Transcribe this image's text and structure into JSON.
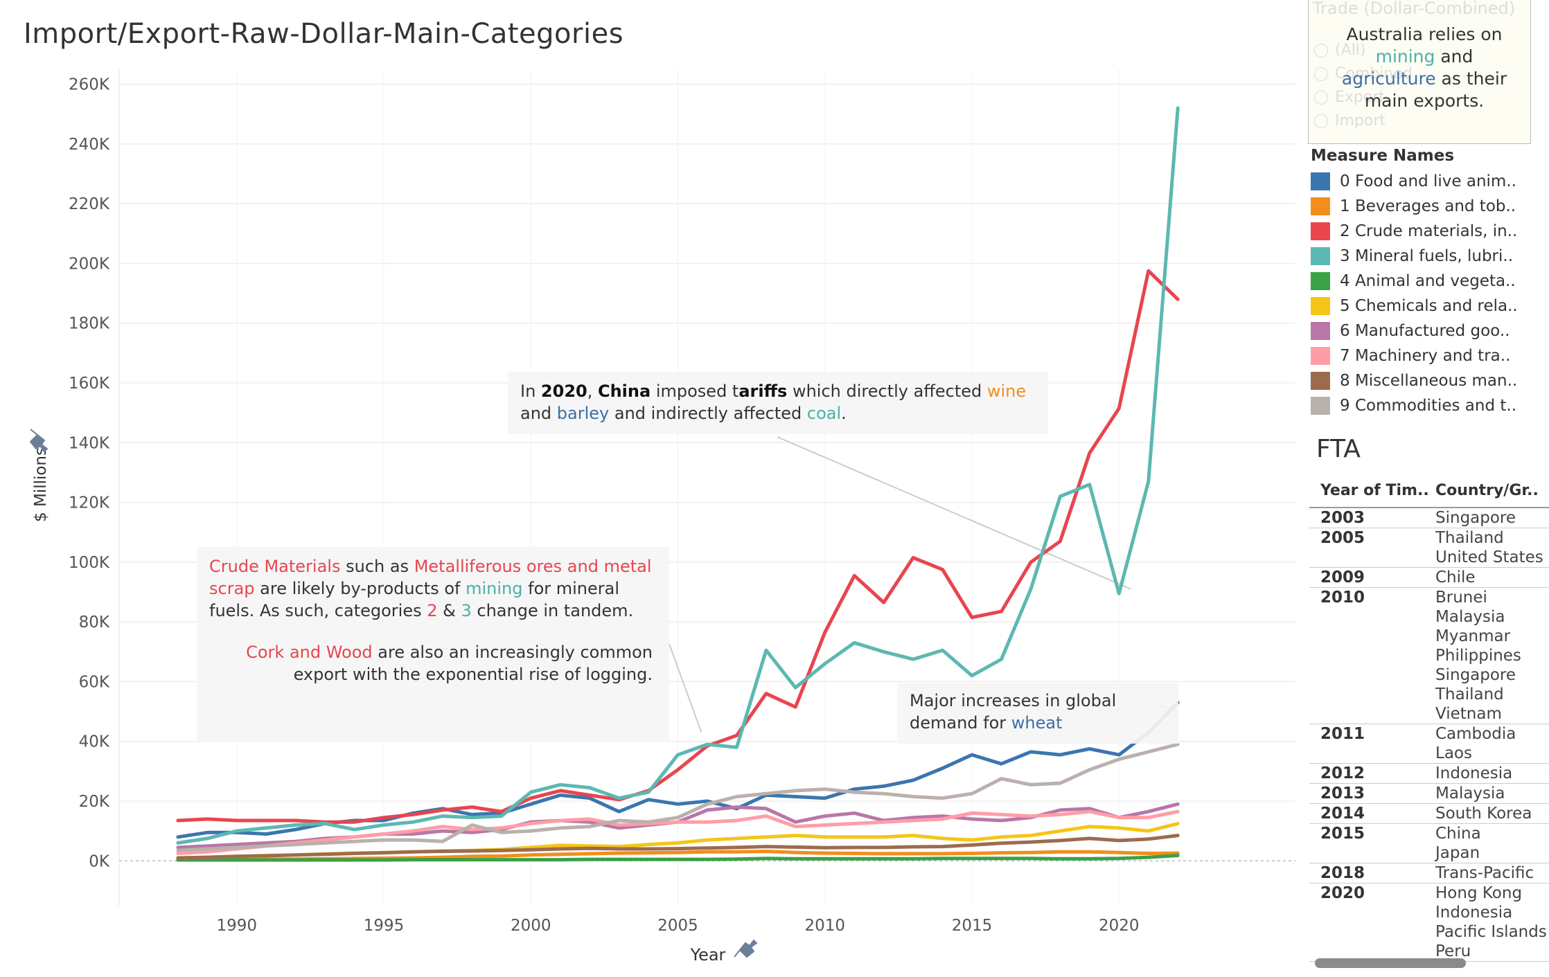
{
  "title": "Import/Export-Raw-Dollar-Main-Categories",
  "filter": {
    "title": "Trade (Dollar-Combined)",
    "options": [
      "(All)",
      "Combined",
      "Export",
      "Import"
    ]
  },
  "tooltip_box": {
    "line1": "Australia  relies on",
    "word_mining": "mining",
    "and": " and",
    "word_agriculture": "agriculture",
    "rest": " as their main exports."
  },
  "annotations": {
    "china": {
      "p1": "In ",
      "year": "2020",
      "p2": ", ",
      "country": "China",
      "p3": " imposed t",
      "bold_word": "ariffs",
      "p4": " which directly affected ",
      "wine": "wine",
      "p5": " and ",
      "barley": "barley",
      "p6": " and indirectly affected ",
      "coal": "coal",
      "p7": "."
    },
    "crude": {
      "a": "Crude Materials",
      "b": " such as ",
      "c": "Metalliferous ores and metal scrap",
      "d": " are likely by-products of ",
      "e": "mining",
      "f": " for mineral fuels. As such, categories ",
      "g": "2",
      "h": " & ",
      "i": "3",
      "j": " change in tandem.",
      "k": "Cork and Wood",
      "l": " are also an increasingly common export with the exponential rise of logging."
    },
    "wheat": {
      "a": "Major increases in global demand for ",
      "b": "wheat"
    }
  },
  "legend": {
    "title": "Measure Names",
    "items": [
      {
        "label": "0 Food and live anim..",
        "color": "#3b75af"
      },
      {
        "label": "1 Beverages and tob..",
        "color": "#f28e1c"
      },
      {
        "label": "2 Crude materials, in..",
        "color": "#e8454f"
      },
      {
        "label": "3 Mineral fuels, lubri..",
        "color": "#5cb8b2"
      },
      {
        "label": "4 Animal and vegeta..",
        "color": "#3aa146"
      },
      {
        "label": "5 Chemicals and rela..",
        "color": "#f5c518"
      },
      {
        "label": "6 Manufactured goo..",
        "color": "#b877a8"
      },
      {
        "label": "7 Machinery and tra..",
        "color": "#ff9da7"
      },
      {
        "label": "8 Miscellaneous man..",
        "color": "#9c6b4e"
      },
      {
        "label": "9 Commodities and t..",
        "color": "#bab0ac"
      }
    ]
  },
  "fta": {
    "title": "FTA",
    "headers": [
      "Year of Tim..",
      "Country/Gr.."
    ],
    "rows": [
      {
        "year": "2003",
        "countries": [
          "Singapore"
        ]
      },
      {
        "year": "2005",
        "countries": [
          "Thailand",
          "United States"
        ]
      },
      {
        "year": "2009",
        "countries": [
          "Chile"
        ]
      },
      {
        "year": "2010",
        "countries": [
          "Brunei",
          "Malaysia",
          "Myanmar",
          "Philippines",
          "Singapore",
          "Thailand",
          "Vietnam"
        ]
      },
      {
        "year": "2011",
        "countries": [
          "Cambodia",
          "Laos"
        ]
      },
      {
        "year": "2012",
        "countries": [
          "Indonesia"
        ]
      },
      {
        "year": "2013",
        "countries": [
          "Malaysia"
        ]
      },
      {
        "year": "2014",
        "countries": [
          "South Korea"
        ]
      },
      {
        "year": "2015",
        "countries": [
          "China",
          "Japan"
        ]
      },
      {
        "year": "2018",
        "countries": [
          "Trans-Pacific"
        ]
      },
      {
        "year": "2020",
        "countries": [
          "Hong Kong",
          "Indonesia",
          "Pacific Islands",
          "Peru"
        ]
      }
    ]
  },
  "chart_data": {
    "type": "line",
    "title": "Import/Export-Raw-Dollar-Main-Categories",
    "xlabel": "Year",
    "ylabel": "$ Millions",
    "xlim": [
      1986,
      2026
    ],
    "ylim": [
      -15000,
      265000
    ],
    "x_ticks": [
      1990,
      1995,
      2000,
      2005,
      2010,
      2015,
      2020
    ],
    "y_ticks": [
      0,
      20000,
      40000,
      60000,
      80000,
      100000,
      120000,
      140000,
      160000,
      180000,
      200000,
      220000,
      240000,
      260000
    ],
    "y_tick_labels": [
      "0K",
      "20K",
      "40K",
      "60K",
      "80K",
      "100K",
      "120K",
      "140K",
      "160K",
      "180K",
      "200K",
      "220K",
      "240K",
      "260K"
    ],
    "grid": true,
    "legend": "right",
    "x": [
      1988,
      1989,
      1990,
      1991,
      1992,
      1993,
      1994,
      1995,
      1996,
      1997,
      1998,
      1999,
      2000,
      2001,
      2002,
      2003,
      2004,
      2005,
      2006,
      2007,
      2008,
      2009,
      2010,
      2011,
      2012,
      2013,
      2014,
      2015,
      2016,
      2017,
      2018,
      2019,
      2020,
      2021,
      2022
    ],
    "series": [
      {
        "name": "0 Food and live anim..",
        "color": "#3b75af",
        "values": [
          8000,
          9500,
          9500,
          9000,
          10500,
          12500,
          13500,
          13500,
          16000,
          17500,
          15500,
          16000,
          19000,
          22000,
          21000,
          16500,
          20500,
          19000,
          20000,
          17500,
          22000,
          21500,
          21000,
          24000,
          25000,
          27000,
          31000,
          35500,
          32500,
          36500,
          35500,
          37500,
          35500,
          43000,
          53000
        ]
      },
      {
        "name": "1 Beverages and tob..",
        "color": "#f28e1c",
        "values": [
          300,
          300,
          400,
          500,
          600,
          700,
          800,
          900,
          1000,
          1200,
          1500,
          1600,
          2000,
          2200,
          2400,
          2600,
          2700,
          2800,
          3000,
          3000,
          3200,
          2800,
          2600,
          2500,
          2400,
          2400,
          2400,
          2500,
          2700,
          2800,
          3000,
          3000,
          2800,
          2500,
          2600
        ]
      },
      {
        "name": "2 Crude materials, in..",
        "color": "#e8454f",
        "values": [
          13500,
          14000,
          13500,
          13500,
          13500,
          13000,
          13000,
          14500,
          15500,
          17000,
          18000,
          16500,
          21000,
          23500,
          22000,
          20500,
          23500,
          30500,
          38500,
          42000,
          56000,
          51500,
          76500,
          95500,
          86500,
          101500,
          97500,
          81500,
          83500,
          100000,
          107000,
          136500,
          151500,
          197500,
          188000
        ]
      },
      {
        "name": "3 Mineral fuels, lubri..",
        "color": "#5cb8b2",
        "values": [
          6000,
          7500,
          10000,
          11000,
          12000,
          12500,
          10500,
          12000,
          13000,
          15000,
          14500,
          15000,
          23000,
          25500,
          24500,
          21000,
          23000,
          35500,
          39000,
          38000,
          70500,
          58000,
          66000,
          73000,
          70000,
          67500,
          70500,
          62000,
          67500,
          91000,
          122000,
          126000,
          89500,
          127000,
          252000
        ]
      },
      {
        "name": "4 Animal and vegeta..",
        "color": "#3aa146",
        "values": [
          300,
          300,
          300,
          300,
          300,
          300,
          300,
          300,
          400,
          400,
          400,
          400,
          400,
          400,
          500,
          500,
          500,
          500,
          500,
          600,
          800,
          700,
          700,
          700,
          700,
          700,
          800,
          800,
          800,
          800,
          700,
          700,
          800,
          1200,
          1800
        ]
      },
      {
        "name": "5 Chemicals and rela..",
        "color": "#f5c518",
        "values": [
          1000,
          1200,
          1500,
          1800,
          2000,
          2300,
          2600,
          2800,
          3000,
          3300,
          3500,
          3800,
          4500,
          5200,
          5000,
          4800,
          5500,
          6000,
          7000,
          7500,
          8000,
          8500,
          8000,
          8000,
          8000,
          8500,
          7500,
          7000,
          8000,
          8500,
          10000,
          11500,
          11000,
          10000,
          12500
        ]
      },
      {
        "name": "6 Manufactured goo..",
        "color": "#b877a8",
        "values": [
          4500,
          5000,
          5500,
          6000,
          6500,
          7500,
          8000,
          9000,
          9000,
          10000,
          9500,
          10500,
          13000,
          13500,
          13000,
          11000,
          12000,
          13000,
          17000,
          18000,
          17500,
          13000,
          15000,
          16000,
          13500,
          14500,
          15000,
          14000,
          13500,
          14500,
          17000,
          17500,
          14500,
          16500,
          19000
        ]
      },
      {
        "name": "7 Machinery and tra..",
        "color": "#ff9da7",
        "values": [
          2500,
          3000,
          4000,
          5000,
          6000,
          7000,
          8000,
          9000,
          10000,
          11500,
          10500,
          11000,
          12500,
          13500,
          14000,
          12000,
          12500,
          13000,
          13000,
          13500,
          15000,
          11500,
          12000,
          12500,
          13000,
          13500,
          14000,
          16000,
          15500,
          15000,
          15500,
          16500,
          14500,
          14500,
          16500
        ]
      },
      {
        "name": "8 Miscellaneous man..",
        "color": "#9c6b4e",
        "values": [
          1000,
          1200,
          1500,
          1700,
          2000,
          2200,
          2500,
          2700,
          3000,
          3200,
          3300,
          3500,
          3700,
          4000,
          4200,
          4000,
          4000,
          4100,
          4300,
          4500,
          4800,
          4600,
          4400,
          4500,
          4500,
          4700,
          4800,
          5300,
          5900,
          6300,
          6800,
          7500,
          6800,
          7300,
          8500
        ]
      },
      {
        "name": "9 Commodities and t..",
        "color": "#bab0ac",
        "values": [
          3500,
          4000,
          4500,
          5000,
          5500,
          6000,
          6500,
          7000,
          7000,
          6500,
          12000,
          9500,
          10000,
          11000,
          11500,
          13500,
          13000,
          14500,
          19000,
          21500,
          22500,
          23500,
          24000,
          23000,
          22500,
          21500,
          21000,
          22500,
          27500,
          25500,
          26000,
          30500,
          34000,
          36500,
          39000
        ]
      }
    ]
  }
}
